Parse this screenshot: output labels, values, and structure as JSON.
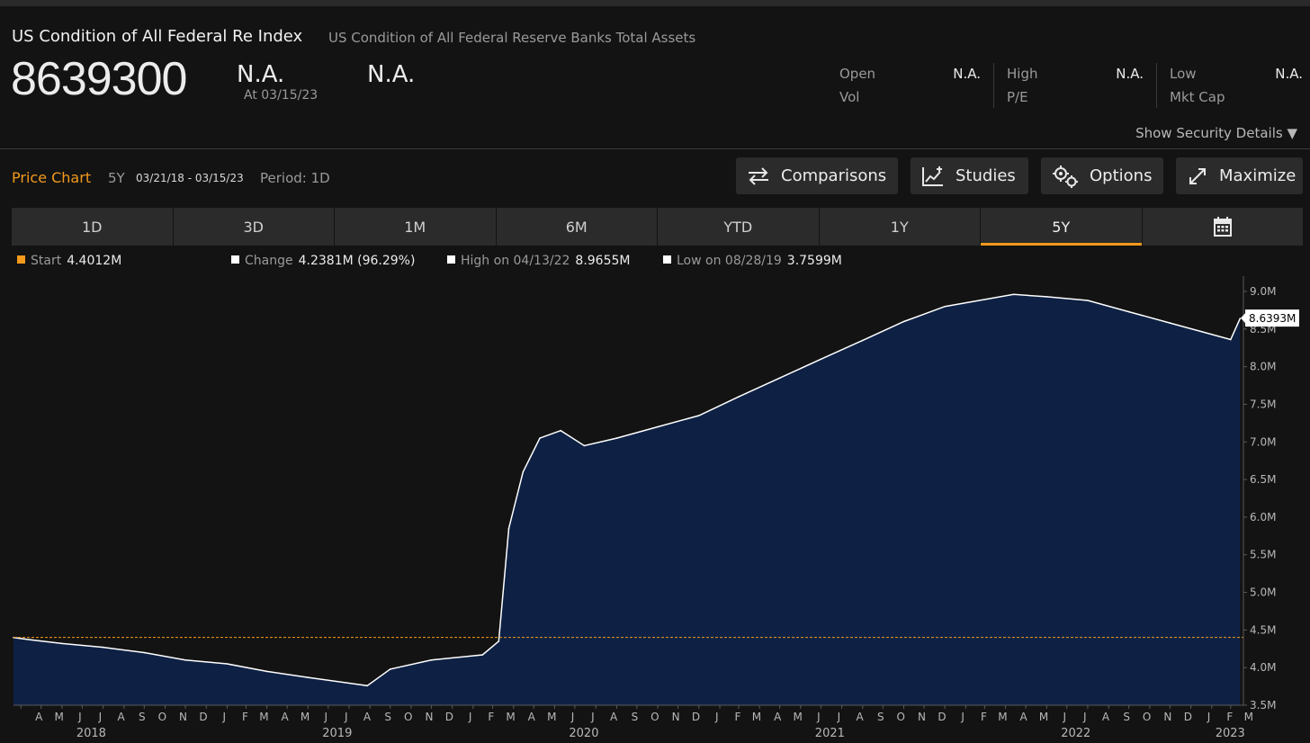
{
  "header": {
    "title": "US Condition of All Federal Re Index",
    "subtitle": "US Condition of All Federal Reserve Banks Total Assets",
    "price": "8639300",
    "change_value": "N.A.",
    "as_of": "At 03/15/23",
    "change_pct": "N.A."
  },
  "stats": {
    "open_label": "Open",
    "open_value": "N.A.",
    "vol_label": "Vol",
    "high_label": "High",
    "high_value": "N.A.",
    "pe_label": "P/E",
    "low_label": "Low",
    "low_value": "N.A.",
    "mktcap_label": "Mkt Cap",
    "show_details": "Show Security Details ▼"
  },
  "price_chart": {
    "title": "Price Chart",
    "range": "5Y",
    "dates": "03/21/18 - 03/15/23",
    "period": "Period: 1D"
  },
  "toolbar": {
    "comparisons": "Comparisons",
    "studies": "Studies",
    "options": "Options",
    "maximize": "Maximize"
  },
  "tabs": [
    "1D",
    "3D",
    "1M",
    "6M",
    "YTD",
    "1Y",
    "5Y"
  ],
  "active_tab": "5Y",
  "legend": {
    "start_label": "Start",
    "start_value": "4.4012M",
    "change_label": "Change",
    "change_value": "4.2381M (96.29%)",
    "high_label": "High on 04/13/22",
    "high_value": "8.9655M",
    "low_label": "Low on 08/28/19",
    "low_value": "3.7599M"
  },
  "colors": {
    "accent": "#f39a1c",
    "area_fill": "#0e2144",
    "line": "#ffffff",
    "background": "#131313"
  },
  "chart_data": {
    "type": "area",
    "x": [
      "2018-03-21",
      "2018-04-15",
      "2018-06-01",
      "2018-08-01",
      "2018-10-01",
      "2018-12-01",
      "2019-02-01",
      "2019-04-01",
      "2019-06-01",
      "2019-08-28",
      "2019-10-01",
      "2019-12-01",
      "2020-02-15",
      "2020-03-10",
      "2020-03-25",
      "2020-04-15",
      "2020-05-10",
      "2020-06-10",
      "2020-07-15",
      "2020-09-01",
      "2020-11-01",
      "2021-01-01",
      "2021-03-01",
      "2021-05-01",
      "2021-07-01",
      "2021-09-01",
      "2021-11-01",
      "2022-01-01",
      "2022-04-13",
      "2022-06-01",
      "2022-08-01",
      "2022-10-01",
      "2022-12-01",
      "2023-03-01",
      "2023-03-15"
    ],
    "values": [
      4.4,
      4.37,
      4.32,
      4.27,
      4.2,
      4.1,
      4.05,
      3.95,
      3.87,
      3.76,
      3.98,
      4.1,
      4.17,
      4.35,
      5.85,
      6.6,
      7.05,
      7.15,
      6.95,
      7.05,
      7.2,
      7.35,
      7.6,
      7.85,
      8.1,
      8.35,
      8.6,
      8.8,
      8.96,
      8.93,
      8.88,
      8.73,
      8.58,
      8.36,
      8.64
    ],
    "start_line": 4.4012,
    "last_label": "8.6393M",
    "ylim": [
      3.5,
      9.0
    ],
    "y_ticks": [
      "9.0M",
      "8.5M",
      "8.0M",
      "7.5M",
      "7.0M",
      "6.5M",
      "6.0M",
      "5.5M",
      "5.0M",
      "4.5M",
      "4.0M",
      "3.5M"
    ],
    "month_labels": [
      "A",
      "M",
      "J",
      "J",
      "A",
      "S",
      "O",
      "N",
      "D",
      "J",
      "F",
      "M",
      "A",
      "M",
      "J",
      "J",
      "A",
      "S",
      "O",
      "N",
      "D",
      "J",
      "F",
      "M",
      "A",
      "M",
      "J",
      "J",
      "A",
      "S",
      "O",
      "N",
      "D",
      "J",
      "F",
      "M",
      "A",
      "M",
      "J",
      "J",
      "A",
      "S",
      "O",
      "N",
      "D",
      "J",
      "F",
      "M",
      "A",
      "M",
      "J",
      "J",
      "A",
      "S",
      "O",
      "N",
      "D",
      "J",
      "F",
      "M"
    ],
    "year_labels": [
      "2018",
      "2019",
      "2020",
      "2021",
      "2022",
      "2023"
    ],
    "xlim": [
      "2018-03-21",
      "2023-03-20"
    ],
    "grid": false
  }
}
